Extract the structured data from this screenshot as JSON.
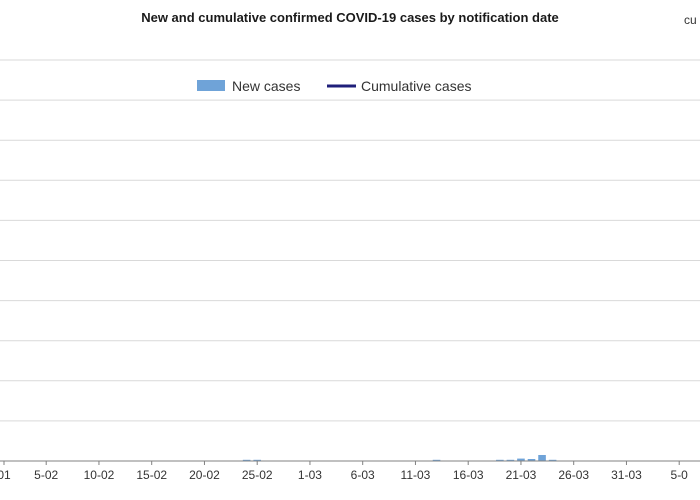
{
  "chart_data": {
    "type": "bar+line",
    "title": "New and cumulative confirmed COVID-19 cases by notification date",
    "edge_label": "cu",
    "legend": {
      "placement": "top-center",
      "entries": [
        "New cases",
        "Cumulative cases"
      ]
    },
    "x_tick_labels": [
      "01",
      "5-02",
      "10-02",
      "15-02",
      "20-02",
      "25-02",
      "1-03",
      "6-03",
      "11-03",
      "16-03",
      "21-03",
      "26-03",
      "31-03",
      "5-0"
    ],
    "x_tick_day_index": [
      0,
      4,
      9,
      14,
      19,
      24,
      29,
      34,
      39,
      44,
      49,
      54,
      59,
      64
    ],
    "ylim": [
      0,
      100
    ],
    "grid": true,
    "colors": {
      "new_cases": "#6fa3d8",
      "cumulative": "#1f1f7a",
      "grid": "#d9d9d9"
    },
    "series": [
      {
        "name": "New cases",
        "chart": "bar",
        "values": [
          0,
          0,
          0,
          0,
          0,
          0,
          0,
          0,
          0,
          0,
          0,
          0,
          0,
          0,
          0,
          0,
          0,
          0,
          0,
          0,
          0,
          0,
          0,
          0.3,
          0.3,
          0,
          0,
          0,
          0,
          0,
          0,
          0,
          0,
          0,
          0,
          0,
          0,
          0,
          0,
          0,
          0,
          0.3,
          0,
          0,
          0,
          0,
          0,
          0.3,
          0.3,
          0.6,
          0.5,
          1.5,
          0.3,
          0,
          0,
          0,
          0,
          0,
          0,
          0,
          0,
          0,
          0,
          0,
          0,
          0,
          0,
          0
        ]
      },
      {
        "name": "Cumulative cases",
        "chart": "line",
        "values": []
      }
    ]
  }
}
